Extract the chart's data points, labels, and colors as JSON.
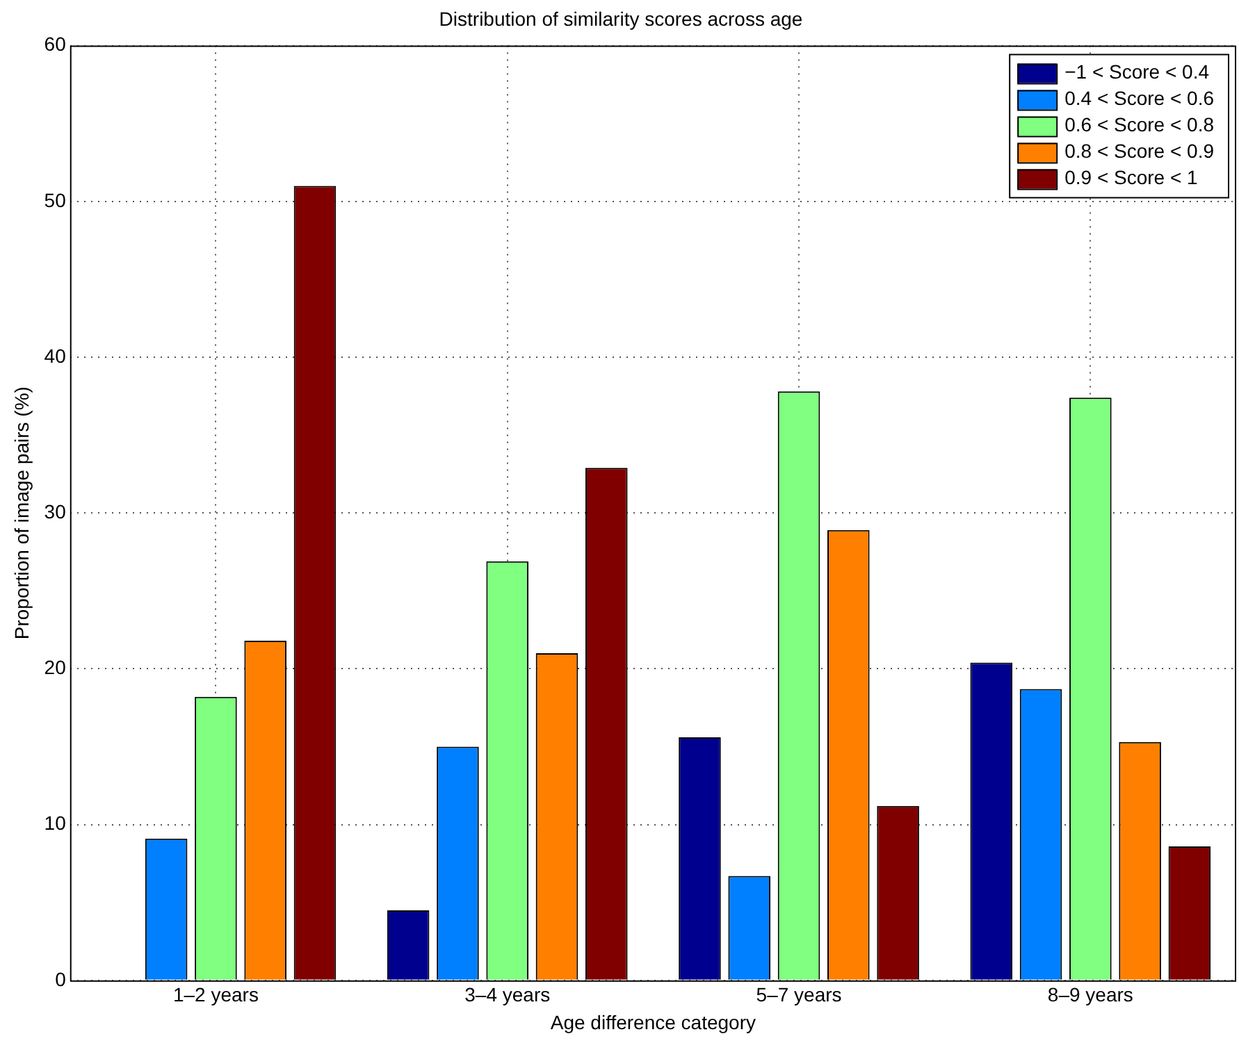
{
  "chart_data": {
    "type": "bar",
    "title": "Distribution of similarity scores across age",
    "xlabel": "Age difference category",
    "ylabel": "Proportion of image pairs (%)",
    "categories": [
      "1–2 years",
      "3–4 years",
      "5–7 years",
      "8–9 years"
    ],
    "series": [
      {
        "name": "−1 < Score < 0.4",
        "color": "#00008f",
        "values": [
          0,
          4.5,
          15.6,
          20.4
        ]
      },
      {
        "name": "0.4 < Score < 0.6",
        "color": "#0080ff",
        "values": [
          9.1,
          15,
          6.7,
          18.7
        ]
      },
      {
        "name": "0.6 < Score < 0.8",
        "color": "#80ff80",
        "values": [
          18.2,
          26.9,
          37.8,
          37.4
        ]
      },
      {
        "name": "0.8 < Score < 0.9",
        "color": "#ff8000",
        "values": [
          21.8,
          21,
          28.9,
          15.3
        ]
      },
      {
        "name": "0.9 < Score < 1",
        "color": "#800000",
        "values": [
          51,
          32.9,
          11.2,
          8.6
        ]
      }
    ],
    "ylim": [
      0,
      60
    ],
    "yticks": [
      0,
      10,
      20,
      30,
      40,
      50,
      60
    ],
    "grid": true,
    "legend": "top right"
  }
}
